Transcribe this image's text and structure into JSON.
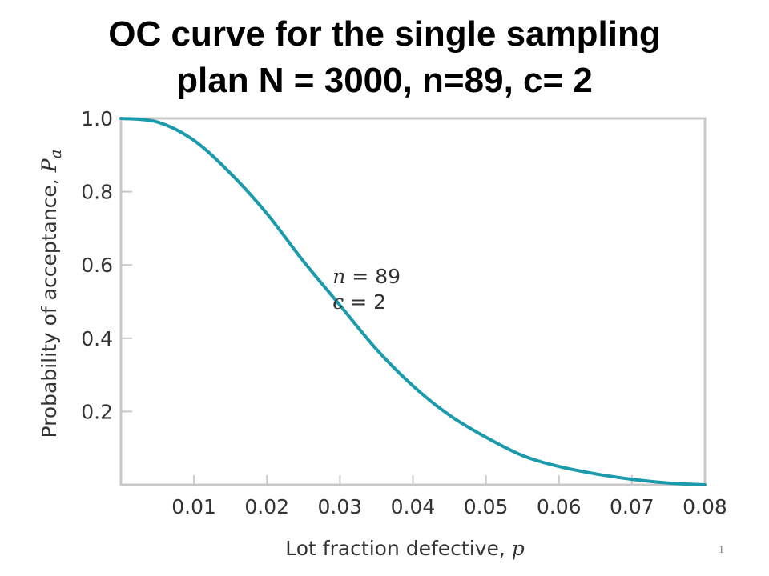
{
  "slide": {
    "title_line1": "OC curve for the single sampling",
    "title_line2": "plan N = 3000, n=89, c= 2",
    "page_number": "1"
  },
  "chart_data": {
    "type": "line",
    "xlabel": "Lot fraction defective,",
    "xlabel_symbol": "p",
    "ylabel": "Probability of acceptance,",
    "ylabel_symbol": "P",
    "ylabel_subscript": "a",
    "xlim": [
      0,
      0.08
    ],
    "ylim": [
      0,
      1.0
    ],
    "x_ticks": [
      0.01,
      0.02,
      0.03,
      0.04,
      0.05,
      0.06,
      0.07,
      0.08
    ],
    "x_tick_labels": [
      "0.01",
      "0.02",
      "0.03",
      "0.04",
      "0.05",
      "0.06",
      "0.07",
      "0.08"
    ],
    "y_ticks": [
      0.2,
      0.4,
      0.6,
      0.8,
      1.0
    ],
    "y_tick_labels": [
      "0.2",
      "0.4",
      "0.6",
      "0.8",
      "1.0"
    ],
    "grid": false,
    "series": [
      {
        "color": "#1a9aaa",
        "x": [
          0,
          0.005,
          0.01,
          0.015,
          0.02,
          0.025,
          0.03,
          0.035,
          0.04,
          0.045,
          0.05,
          0.055,
          0.06,
          0.065,
          0.07,
          0.075,
          0.08
        ],
        "y": [
          1.0,
          0.99,
          0.94,
          0.85,
          0.74,
          0.61,
          0.49,
          0.37,
          0.27,
          0.19,
          0.13,
          0.08,
          0.05,
          0.03,
          0.015,
          0.005,
          0.0
        ]
      }
    ],
    "annotations": [
      {
        "symbol": "n",
        "text": " = 89",
        "x": 0.029,
        "y": 0.55
      },
      {
        "symbol": "c",
        "text": " = 2",
        "x": 0.029,
        "y": 0.48
      }
    ],
    "colors": {
      "curve": "#1a9aaa",
      "frame": "#c8c8c8",
      "text": "#333333"
    }
  }
}
